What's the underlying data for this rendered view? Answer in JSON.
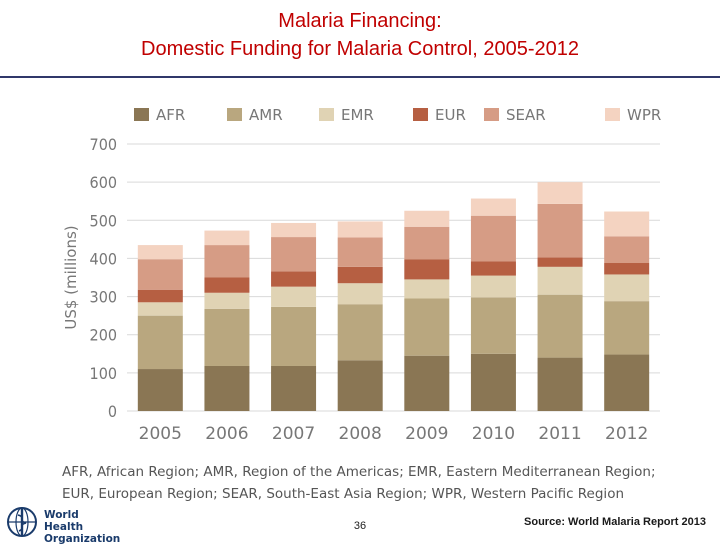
{
  "title_line1": "Malaria Financing:",
  "title_line2": "Domestic Funding for Malaria Control, 2005-2012",
  "footnote_line1": "AFR, African Region; AMR, Region of the Americas; EMR, Eastern Mediterranean Region;",
  "footnote_line2": "EUR, European Region; SEAR, South-East Asia Region; WPR, Western Pacific Region",
  "logo": {
    "line1": "World Health",
    "line2": "Organization"
  },
  "page_number": "36",
  "source": "Source: World Malaria Report 2013",
  "colors": {
    "AFR": "#8a7654",
    "AMR": "#b9a77f",
    "EMR": "#e0d3b4",
    "EUR": "#b65f42",
    "SEAR": "#d69c85",
    "WPR": "#f4d3c1"
  },
  "chart_data": {
    "type": "bar",
    "stacked": true,
    "title": "",
    "xlabel": "",
    "ylabel": "US$ (millions)",
    "ylim": [
      0,
      700
    ],
    "yticks": [
      0,
      100,
      200,
      300,
      400,
      500,
      600,
      700
    ],
    "grid": true,
    "legend_position": "top",
    "categories": [
      "2005",
      "2006",
      "2007",
      "2008",
      "2009",
      "2010",
      "2011",
      "2012"
    ],
    "series": [
      {
        "name": "AFR",
        "values": [
          110,
          118,
          118,
          133,
          145,
          150,
          140,
          148
        ]
      },
      {
        "name": "AMR",
        "values": [
          140,
          150,
          155,
          147,
          150,
          148,
          165,
          140
        ]
      },
      {
        "name": "EMR",
        "values": [
          35,
          42,
          53,
          55,
          50,
          57,
          73,
          70
        ]
      },
      {
        "name": "EUR",
        "values": [
          33,
          40,
          40,
          43,
          53,
          37,
          25,
          30
        ]
      },
      {
        "name": "SEAR",
        "values": [
          80,
          85,
          90,
          77,
          85,
          120,
          140,
          70
        ]
      },
      {
        "name": "WPR",
        "values": [
          37,
          38,
          37,
          42,
          42,
          45,
          57,
          65
        ]
      }
    ]
  }
}
